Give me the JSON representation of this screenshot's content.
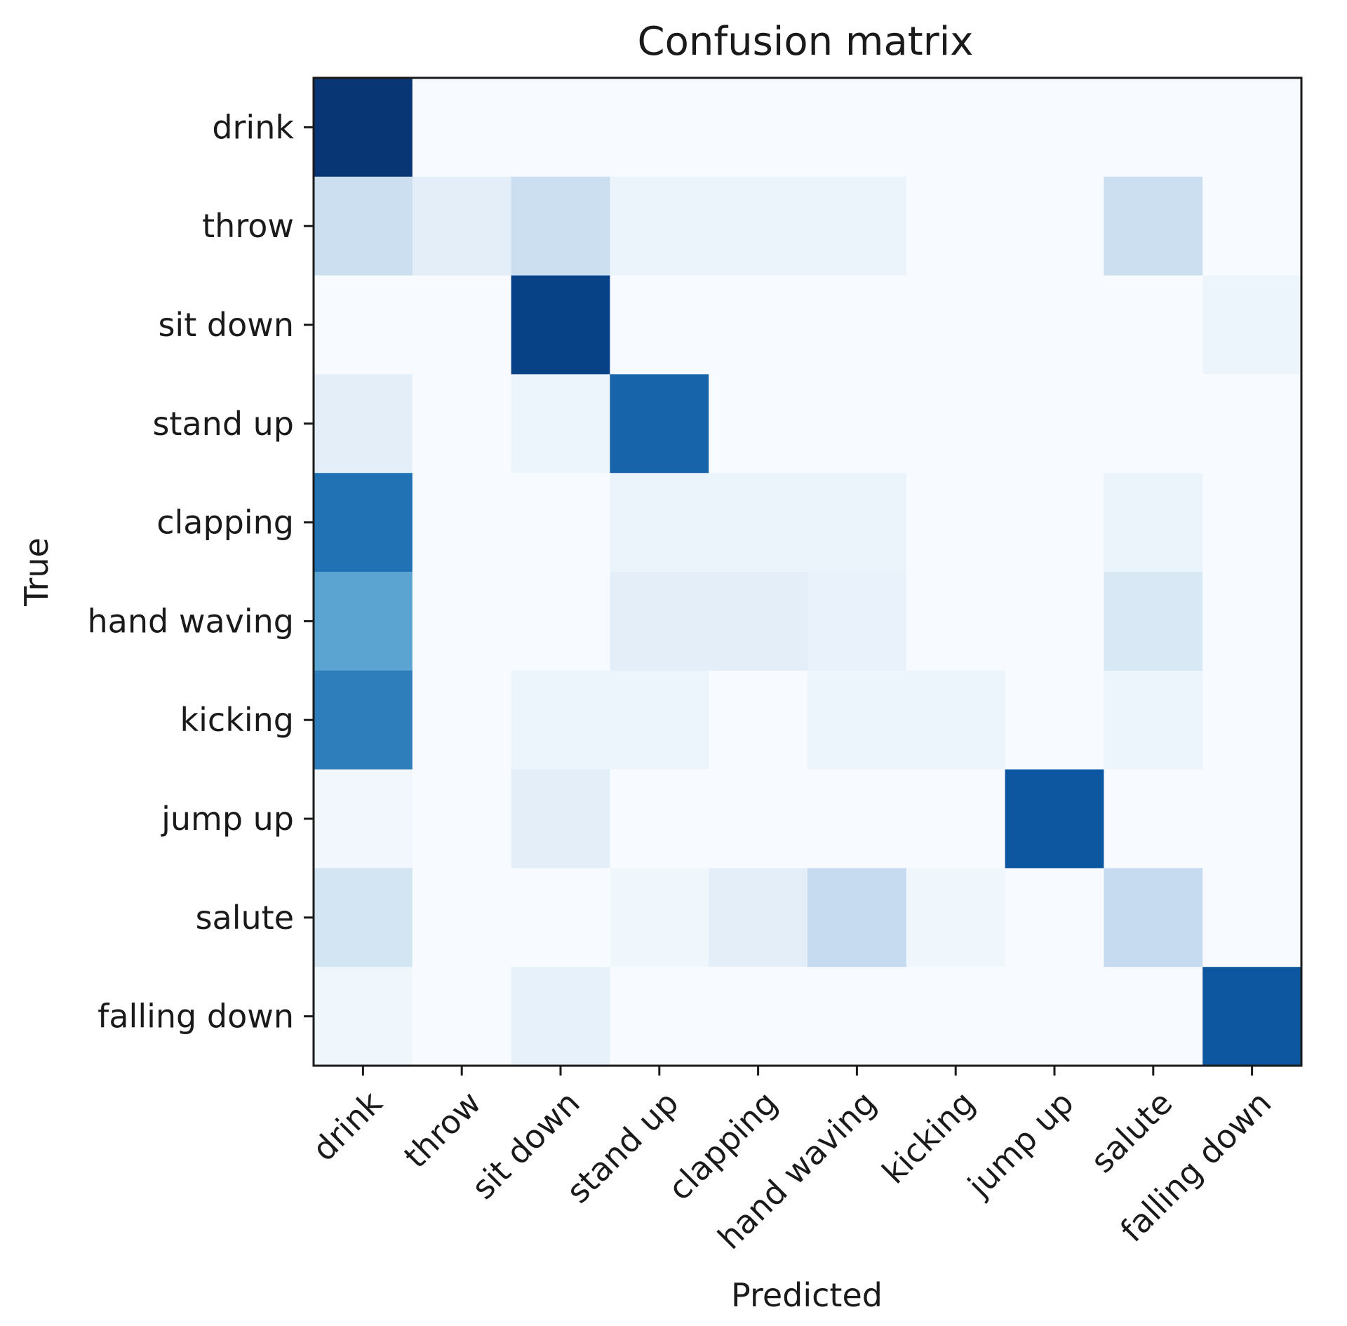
{
  "chart_data": {
    "type": "heatmap",
    "title": "Confusion matrix",
    "xlabel": "Predicted",
    "ylabel": "True",
    "colormap": "Blues",
    "x_categories": [
      "drink",
      "throw",
      "sit down",
      "stand up",
      "clapping",
      "hand waving",
      "kicking",
      "jump up",
      "salute",
      "falling down"
    ],
    "y_categories": [
      "drink",
      "throw",
      "sit down",
      "stand up",
      "clapping",
      "hand waving",
      "kicking",
      "jump up",
      "salute",
      "falling down"
    ],
    "vmin": 0,
    "vmax": 1,
    "values": [
      [
        0.98,
        0.0,
        0.0,
        0.0,
        0.0,
        0.0,
        0.0,
        0.0,
        0.0,
        0.0
      ],
      [
        0.22,
        0.1,
        0.22,
        0.06,
        0.06,
        0.06,
        0.0,
        0.0,
        0.22,
        0.0
      ],
      [
        0.0,
        0.0,
        0.93,
        0.0,
        0.0,
        0.0,
        0.0,
        0.0,
        0.0,
        0.05
      ],
      [
        0.1,
        0.0,
        0.05,
        0.8,
        0.0,
        0.0,
        0.0,
        0.0,
        0.0,
        0.0
      ],
      [
        0.75,
        0.0,
        0.0,
        0.06,
        0.06,
        0.06,
        0.0,
        0.0,
        0.06,
        0.0
      ],
      [
        0.55,
        0.0,
        0.0,
        0.1,
        0.1,
        0.07,
        0.0,
        0.0,
        0.15,
        0.0
      ],
      [
        0.7,
        0.0,
        0.05,
        0.05,
        0.0,
        0.05,
        0.05,
        0.0,
        0.05,
        0.0
      ],
      [
        0.03,
        0.0,
        0.1,
        0.0,
        0.0,
        0.0,
        0.0,
        0.85,
        0.0,
        0.0
      ],
      [
        0.18,
        0.0,
        0.0,
        0.04,
        0.1,
        0.25,
        0.04,
        0.0,
        0.25,
        0.0
      ],
      [
        0.04,
        0.0,
        0.08,
        0.0,
        0.0,
        0.0,
        0.0,
        0.0,
        0.0,
        0.85
      ]
    ]
  }
}
